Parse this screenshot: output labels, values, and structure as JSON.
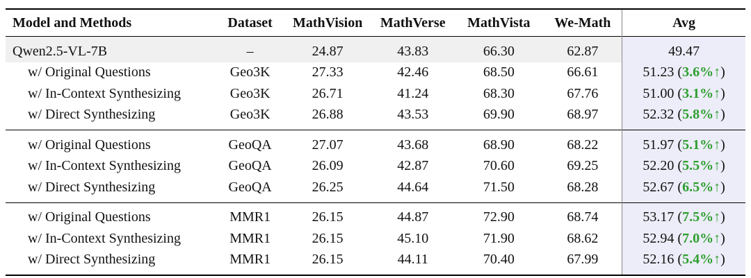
{
  "headers": [
    "Model and Methods",
    "Dataset",
    "MathVision",
    "MathVerse",
    "MathVista",
    "We-Math",
    "Avg"
  ],
  "base": {
    "model": "Qwen2.5-VL-7B",
    "dataset": "–",
    "mathvision": "24.87",
    "mathverse": "43.83",
    "mathvista": "66.30",
    "wemath": "62.87",
    "avg": "49.47"
  },
  "groups": [
    {
      "rows": [
        {
          "method": "w/ Original Questions",
          "dataset": "Geo3K",
          "mathvision": "27.33",
          "mathverse": "42.46",
          "mathvista": "68.50",
          "wemath": "66.61",
          "avg": "51.23",
          "gain": "3.6%↑"
        },
        {
          "method": "w/ In-Context Synthesizing",
          "dataset": "Geo3K",
          "mathvision": "26.71",
          "mathverse": "41.24",
          "mathvista": "68.30",
          "wemath": "67.76",
          "avg": "51.00",
          "gain": "3.1%↑"
        },
        {
          "method": "w/ Direct Synthesizing",
          "dataset": "Geo3K",
          "mathvision": "26.88",
          "mathverse": "43.53",
          "mathvista": "69.90",
          "wemath": "68.97",
          "avg": "52.32",
          "gain": "5.8%↑"
        }
      ]
    },
    {
      "rows": [
        {
          "method": "w/ Original Questions",
          "dataset": "GeoQA",
          "mathvision": "27.07",
          "mathverse": "43.68",
          "mathvista": "68.90",
          "wemath": "68.22",
          "avg": "51.97",
          "gain": "5.1%↑"
        },
        {
          "method": "w/ In-Context Synthesizing",
          "dataset": "GeoQA",
          "mathvision": "26.09",
          "mathverse": "42.87",
          "mathvista": "70.60",
          "wemath": "69.25",
          "avg": "52.20",
          "gain": "5.5%↑"
        },
        {
          "method": "w/ Direct Synthesizing",
          "dataset": "GeoQA",
          "mathvision": "26.25",
          "mathverse": "44.64",
          "mathvista": "71.50",
          "wemath": "68.28",
          "avg": "52.67",
          "gain": "6.5%↑"
        }
      ]
    },
    {
      "rows": [
        {
          "method": "w/ Original Questions",
          "dataset": "MMR1",
          "mathvision": "26.15",
          "mathverse": "44.87",
          "mathvista": "72.90",
          "wemath": "68.74",
          "avg": "53.17",
          "gain": "7.5%↑"
        },
        {
          "method": "w/ In-Context Synthesizing",
          "dataset": "MMR1",
          "mathvision": "26.15",
          "mathverse": "45.10",
          "mathvista": "71.90",
          "wemath": "68.62",
          "avg": "52.94",
          "gain": "7.0%↑"
        },
        {
          "method": "w/ Direct Synthesizing",
          "dataset": "MMR1",
          "mathvision": "26.15",
          "mathverse": "44.11",
          "mathvista": "70.40",
          "wemath": "67.99",
          "avg": "52.16",
          "gain": "5.4%↑"
        }
      ]
    }
  ],
  "colors": {
    "gain": "#2e9e2e",
    "avg_bg": "#ecedf8",
    "base_bg": "#f0f0f0"
  }
}
